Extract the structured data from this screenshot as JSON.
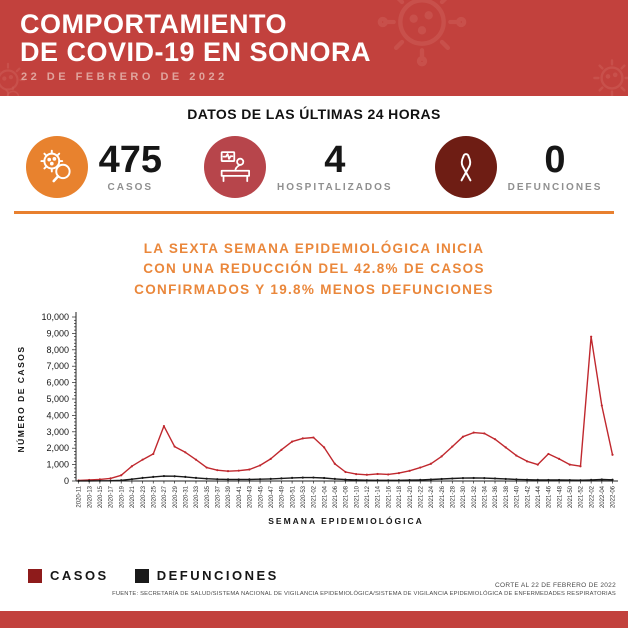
{
  "colors": {
    "header_red": "#C2413D",
    "watermark_red": "#CE5E57",
    "accent_orange": "#E8822E",
    "crimson": "#B7454B",
    "maroon": "#6E1D14",
    "legend_casos": "#8E1B1B",
    "legend_defunciones": "#1A1A1A"
  },
  "header": {
    "title_line1": "COMPORTAMIENTO",
    "title_line2": "DE COVID-19 EN SONORA",
    "date": "22 DE FEBRERO DE 2022"
  },
  "last24h": {
    "heading": "DATOS DE LAS ÚLTIMAS 24 HORAS",
    "stats": [
      {
        "value": "475",
        "label": "CASOS",
        "circle_color": "#E8822E",
        "icon": "virus-search-icon"
      },
      {
        "value": "4",
        "label": "HOSPITALIZADOS",
        "circle_color": "#B7454B",
        "icon": "hospital-bed-icon"
      },
      {
        "value": "0",
        "label": "DEFUNCIONES",
        "circle_color": "#6E1D14",
        "icon": "awareness-ribbon-icon"
      }
    ]
  },
  "message": {
    "line1": "LA SEXTA SEMANA EPIDEMIOLÓGICA INICIA",
    "line2": "CON UNA REDUCCIÓN DEL 42.8% DE CASOS",
    "line3": "CONFIRMADOS Y 19.8% MENOS DEFUNCIONES"
  },
  "chart_data": {
    "type": "line",
    "xlabel": "SEMANA EPIDEMIOLÓGICA",
    "ylabel": "NÚMERO DE CASOS",
    "ylim": [
      0,
      10000
    ],
    "ytick_step": 1000,
    "grid": false,
    "legend_position": "bottom-left",
    "categories": [
      "2020-11",
      "2020-13",
      "2020-15",
      "2020-17",
      "2020-19",
      "2020-21",
      "2020-23",
      "2020-25",
      "2020-27",
      "2020-29",
      "2020-31",
      "2020-33",
      "2020-35",
      "2020-37",
      "2020-39",
      "2020-41",
      "2020-43",
      "2020-45",
      "2020-47",
      "2020-49",
      "2020-51",
      "2020-53",
      "2021-02",
      "2021-04",
      "2021-06",
      "2021-08",
      "2021-10",
      "2021-12",
      "2021-14",
      "2021-16",
      "2021-18",
      "2021-20",
      "2021-22",
      "2021-24",
      "2021-26",
      "2021-28",
      "2021-30",
      "2021-32",
      "2021-34",
      "2021-36",
      "2021-38",
      "2021-40",
      "2021-42",
      "2021-44",
      "2021-46",
      "2021-48",
      "2021-50",
      "2021-52",
      "2022-02",
      "2022-04",
      "2022-06"
    ],
    "series": [
      {
        "name": "CASOS",
        "color": "#C0282E",
        "values": [
          30,
          60,
          100,
          160,
          350,
          900,
          1300,
          1650,
          3350,
          2100,
          1750,
          1300,
          820,
          660,
          600,
          630,
          700,
          950,
          1350,
          1900,
          2400,
          2600,
          2650,
          2050,
          1050,
          550,
          420,
          380,
          430,
          400,
          480,
          620,
          820,
          1050,
          1500,
          2100,
          2700,
          2950,
          2900,
          2550,
          2050,
          1550,
          1200,
          1000,
          1650,
          1350,
          1000,
          900,
          8800,
          4600,
          1600
        ]
      },
      {
        "name": "DEFUNCIONES",
        "color": "#1A1A1A",
        "values": [
          5,
          8,
          12,
          20,
          45,
          110,
          190,
          250,
          300,
          290,
          250,
          190,
          140,
          110,
          100,
          95,
          100,
          110,
          130,
          160,
          190,
          205,
          210,
          185,
          130,
          85,
          60,
          50,
          45,
          40,
          45,
          55,
          70,
          90,
          120,
          150,
          175,
          185,
          175,
          155,
          125,
          100,
          80,
          70,
          65,
          60,
          55,
          50,
          70,
          90,
          75
        ]
      }
    ]
  },
  "legend": {
    "items": [
      {
        "label": "CASOS",
        "color": "#8E1B1B"
      },
      {
        "label": "DEFUNCIONES",
        "color": "#1A1A1A"
      }
    ]
  },
  "footer": {
    "cutoff": "CORTE AL 22 DE FEBRERO DE 2022",
    "source": "FUENTE: SECRETARÍA DE SALUD/SISTEMA NACIONAL DE VIGILANCIA EPIDEMIOLÓGICA/SISTEMA DE VIGILANCIA EPIDEMIOLÓGICA DE ENFERMEDADES RESPIRATORIAS"
  }
}
